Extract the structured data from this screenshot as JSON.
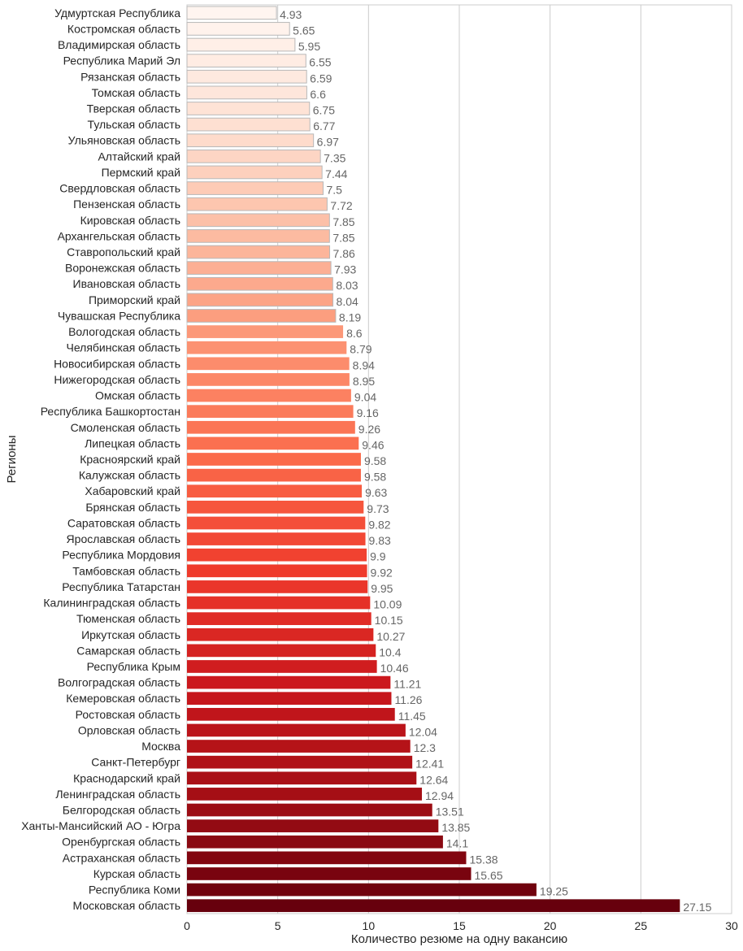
{
  "chart_data": {
    "type": "bar",
    "orientation": "horizontal",
    "xlabel": "Количество резюме на одну вакансию",
    "ylabel": "Регионы",
    "xlim": [
      0,
      30
    ],
    "xticks": [
      "0",
      "5",
      "10",
      "15",
      "20",
      "25",
      "30"
    ],
    "grid": "vertical",
    "colormap": "Reds",
    "categories": [
      "Удмуртская Республика",
      "Костромская область",
      "Владимирская область",
      "Республика Марий Эл",
      "Рязанская область",
      "Томская область",
      "Тверская область",
      "Тульская область",
      "Ульяновская область",
      "Алтайский край",
      "Пермский край",
      "Свердловская область",
      "Пензенская область",
      "Кировская область",
      "Архангельская область",
      "Ставропольский край",
      "Воронежская область",
      "Ивановская область",
      "Приморский край",
      "Чувашская Республика",
      "Вологодская область",
      "Челябинская область",
      "Новосибирская область",
      "Нижегородская область",
      "Омская область",
      "Республика Башкортостан",
      "Смоленская область",
      "Липецкая область",
      "Красноярский край",
      "Калужская область",
      "Хабаровский край",
      "Брянская область",
      "Саратовская область",
      "Ярославская область",
      "Республика Мордовия",
      "Тамбовская область",
      "Республика Татарстан",
      "Калининградская область",
      "Тюменская область",
      "Иркутская область",
      "Самарская область",
      "Республика Крым",
      "Волгоградская область",
      "Кемеровская область",
      "Ростовская область",
      "Орловская область",
      "Москва",
      "Санкт-Петербург",
      "Краснодарский край",
      "Ленинградская область",
      "Белгородская область",
      "Ханты-Мансийский АО - Югра",
      "Оренбургская область",
      "Астраханская область",
      "Курская область",
      "Республика Коми",
      "Московская область"
    ],
    "values": [
      4.93,
      5.65,
      5.95,
      6.55,
      6.59,
      6.6,
      6.75,
      6.77,
      6.97,
      7.35,
      7.44,
      7.5,
      7.72,
      7.85,
      7.85,
      7.86,
      7.93,
      8.03,
      8.04,
      8.19,
      8.6,
      8.79,
      8.94,
      8.95,
      9.04,
      9.16,
      9.26,
      9.46,
      9.58,
      9.58,
      9.63,
      9.73,
      9.82,
      9.83,
      9.9,
      9.92,
      9.95,
      10.09,
      10.15,
      10.27,
      10.4,
      10.46,
      11.21,
      11.26,
      11.45,
      12.04,
      12.3,
      12.41,
      12.64,
      12.94,
      13.51,
      13.85,
      14.1,
      15.38,
      15.65,
      19.25,
      27.15
    ],
    "value_labels": [
      "4.93",
      "5.65",
      "5.95",
      "6.55",
      "6.59",
      "6.6",
      "6.75",
      "6.77",
      "6.97",
      "7.35",
      "7.44",
      "7.5",
      "7.72",
      "7.85",
      "7.85",
      "7.86",
      "7.93",
      "8.03",
      "8.04",
      "8.19",
      "8.6",
      "8.79",
      "8.94",
      "8.95",
      "9.04",
      "9.16",
      "9.26",
      "9.46",
      "9.58",
      "9.58",
      "9.63",
      "9.73",
      "9.82",
      "9.83",
      "9.9",
      "9.92",
      "9.95",
      "10.09",
      "10.15",
      "10.27",
      "10.4",
      "10.46",
      "11.21",
      "11.26",
      "11.45",
      "12.04",
      "12.3",
      "12.41",
      "12.64",
      "12.94",
      "13.51",
      "13.85",
      "14.1",
      "15.38",
      "15.65",
      "19.25",
      "27.15"
    ]
  }
}
